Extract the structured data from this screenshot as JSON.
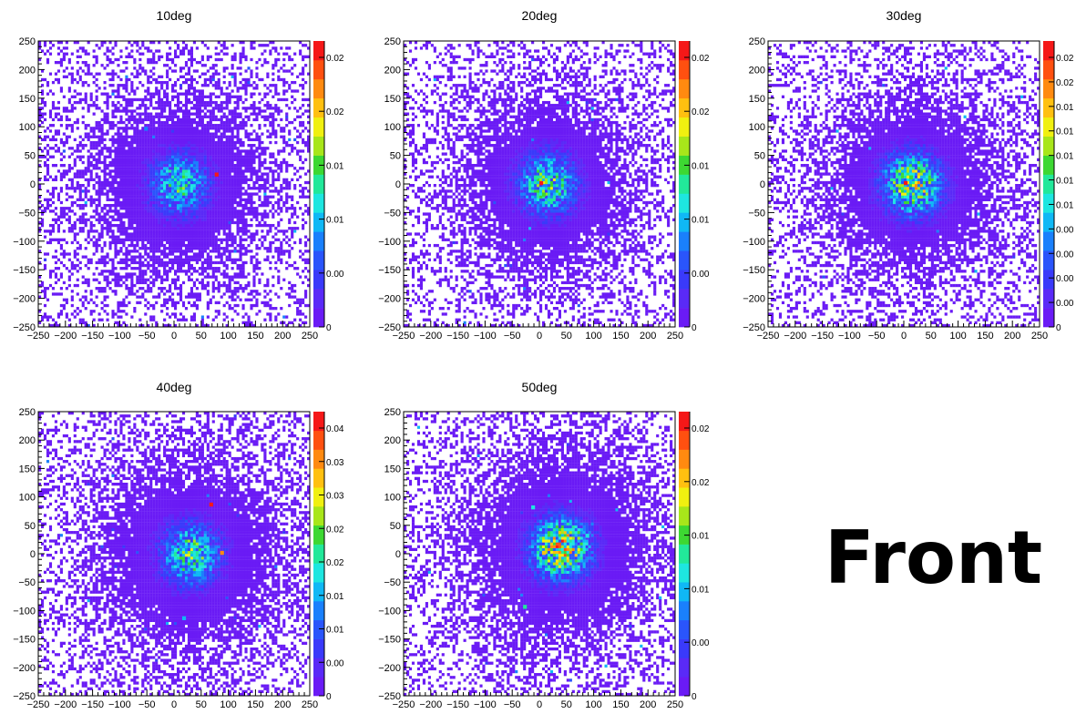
{
  "side_label": "Front",
  "chart_data": [
    {
      "type": "heatmap",
      "title": "10deg",
      "x_ticks": [
        "−250",
        "−200",
        "−150",
        "−100",
        "−50",
        "0",
        "50",
        "100",
        "150",
        "200",
        "250"
      ],
      "y_ticks": [
        "250",
        "200",
        "150",
        "100",
        "50",
        "0",
        "−50",
        "−100",
        "−150",
        "−200",
        "−250"
      ],
      "xlim": [
        -250,
        250
      ],
      "ylim": [
        -250,
        250
      ],
      "colorbar_labels": [
        "0.02",
        "0.02",
        "0.01",
        "0.01",
        "0.00",
        "0"
      ],
      "colorbar_max": 0.025,
      "core_center": [
        10,
        0
      ],
      "core_spread": 95,
      "core_intensity": 0.35,
      "hotspots": [
        [
          75,
          15,
          0.025
        ],
        [
          5,
          0,
          0.012
        ],
        [
          -55,
          95,
          0.008
        ]
      ]
    },
    {
      "type": "heatmap",
      "title": "20deg",
      "x_ticks": [
        "−250",
        "−200",
        "−150",
        "−100",
        "−50",
        "0",
        "50",
        "100",
        "150",
        "200",
        "250"
      ],
      "y_ticks": [
        "250",
        "200",
        "150",
        "100",
        "50",
        "0",
        "−50",
        "−100",
        "−150",
        "−200",
        "−250"
      ],
      "xlim": [
        -250,
        250
      ],
      "ylim": [
        -250,
        250
      ],
      "colorbar_labels": [
        "0.02",
        "0.02",
        "0.01",
        "0.01",
        "0.00",
        "0"
      ],
      "colorbar_max": 0.025,
      "core_center": [
        15,
        0
      ],
      "core_spread": 95,
      "core_intensity": 0.4,
      "hotspots": [
        [
          0,
          0,
          0.025
        ],
        [
          5,
          -20,
          0.015
        ],
        [
          -10,
          10,
          0.012
        ]
      ]
    },
    {
      "type": "heatmap",
      "title": "30deg",
      "x_ticks": [
        "−250",
        "−200",
        "−150",
        "−100",
        "−50",
        "0",
        "50",
        "100",
        "150",
        "200",
        "250"
      ],
      "y_ticks": [
        "250",
        "200",
        "150",
        "100",
        "50",
        "0",
        "−50",
        "−100",
        "−150",
        "−200",
        "−250"
      ],
      "xlim": [
        -250,
        250
      ],
      "ylim": [
        -250,
        250
      ],
      "colorbar_labels": [
        "0.02",
        "0.02",
        "0.01",
        "0.01",
        "0.01",
        "0.01",
        "0.01",
        "0.00",
        "0.00",
        "0.00",
        "0.00",
        "0"
      ],
      "colorbar_max": 0.024,
      "core_center": [
        15,
        0
      ],
      "core_spread": 95,
      "core_intensity": 0.5,
      "hotspots": [
        [
          0,
          0,
          0.024
        ],
        [
          10,
          10,
          0.014
        ],
        [
          15,
          -25,
          0.012
        ]
      ]
    },
    {
      "type": "heatmap",
      "title": "40deg",
      "x_ticks": [
        "−250",
        "−200",
        "−150",
        "−100",
        "−50",
        "0",
        "50",
        "100",
        "150",
        "200",
        "250"
      ],
      "y_ticks": [
        "250",
        "200",
        "150",
        "100",
        "50",
        "0",
        "−50",
        "−100",
        "−150",
        "−200",
        "−250"
      ],
      "xlim": [
        -250,
        250
      ],
      "ylim": [
        -250,
        250
      ],
      "colorbar_labels": [
        "0.04",
        "0.03",
        "0.03",
        "0.02",
        "0.02",
        "0.01",
        "0.01",
        "0.00",
        "0"
      ],
      "colorbar_max": 0.045,
      "core_center": [
        30,
        0
      ],
      "core_spread": 105,
      "core_intensity": 0.4,
      "hotspots": [
        [
          65,
          85,
          0.045
        ],
        [
          85,
          0,
          0.04
        ],
        [
          0,
          5,
          0.02
        ],
        [
          15,
          -115,
          0.015
        ]
      ]
    },
    {
      "type": "heatmap",
      "title": "50deg",
      "x_ticks": [
        "−250",
        "−200",
        "−150",
        "−100",
        "−50",
        "0",
        "50",
        "100",
        "150",
        "200",
        "250"
      ],
      "y_ticks": [
        "250",
        "200",
        "150",
        "100",
        "50",
        "0",
        "−50",
        "−100",
        "−150",
        "−200",
        "−250"
      ],
      "xlim": [
        -250,
        250
      ],
      "ylim": [
        -250,
        250
      ],
      "colorbar_labels": [
        "0.02",
        "0.02",
        "0.01",
        "0.01",
        "0.00",
        "0"
      ],
      "colorbar_max": 0.025,
      "core_center": [
        40,
        10
      ],
      "core_spread": 110,
      "core_intensity": 0.55,
      "hotspots": [
        [
          5,
          0,
          0.02
        ],
        [
          -15,
          80,
          0.01
        ],
        [
          -30,
          -95,
          0.012
        ],
        [
          85,
          30,
          0.01
        ]
      ]
    }
  ]
}
